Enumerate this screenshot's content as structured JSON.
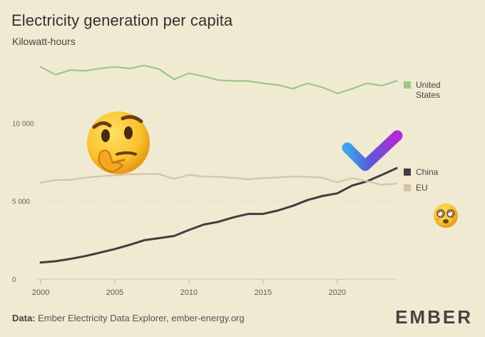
{
  "title": "Electricity generation per capita",
  "subtitle": "Kilowatt-hours",
  "footer": {
    "data_label": "Data:",
    "source": "Ember Electricity Data Explorer, ember-energy.org"
  },
  "brand": "EMBER",
  "icons": [
    "thinking-face-emoji",
    "check-mark-icon",
    "dizzy-face-emoji"
  ],
  "colors": {
    "background": "#f1ead3",
    "united_states": "#9bc787",
    "china": "#463c3f",
    "eu": "#d4c4a5",
    "gridline": "#dcd4bd"
  },
  "chart_data": {
    "type": "line",
    "title": "Electricity generation per capita",
    "ylabel": "Kilowatt-hours",
    "xlabel": "",
    "xlim": [
      2000,
      2024
    ],
    "ylim": [
      0,
      14000
    ],
    "yticks": [
      0,
      5000,
      10000
    ],
    "ytick_labels": [
      "0",
      "5 000",
      "10 000"
    ],
    "xticks": [
      2000,
      2005,
      2010,
      2015,
      2020
    ],
    "grid": true,
    "legend_placement": "right, at line ends",
    "x": [
      2000,
      2001,
      2002,
      2003,
      2004,
      2005,
      2006,
      2007,
      2008,
      2009,
      2010,
      2011,
      2012,
      2013,
      2014,
      2015,
      2016,
      2017,
      2018,
      2019,
      2020,
      2021,
      2022,
      2023,
      2024
    ],
    "series": [
      {
        "name": "United States",
        "color": "#9bc787",
        "values": [
          13600,
          13100,
          13400,
          13350,
          13500,
          13600,
          13500,
          13700,
          13450,
          12800,
          13200,
          13000,
          12750,
          12700,
          12700,
          12550,
          12450,
          12200,
          12550,
          12300,
          11900,
          12200,
          12550,
          12400,
          12700
        ]
      },
      {
        "name": "China",
        "color": "#463c3f",
        "values": [
          1070,
          1150,
          1300,
          1480,
          1700,
          1930,
          2200,
          2500,
          2630,
          2770,
          3150,
          3500,
          3680,
          3960,
          4180,
          4180,
          4400,
          4700,
          5070,
          5330,
          5500,
          6000,
          6270,
          6680,
          7110
        ]
      },
      {
        "name": "EU",
        "color": "#d4c4a5",
        "values": [
          6180,
          6350,
          6370,
          6500,
          6600,
          6650,
          6720,
          6740,
          6730,
          6430,
          6690,
          6570,
          6560,
          6490,
          6400,
          6480,
          6520,
          6580,
          6560,
          6500,
          6200,
          6480,
          6280,
          6050,
          6120
        ]
      }
    ]
  }
}
